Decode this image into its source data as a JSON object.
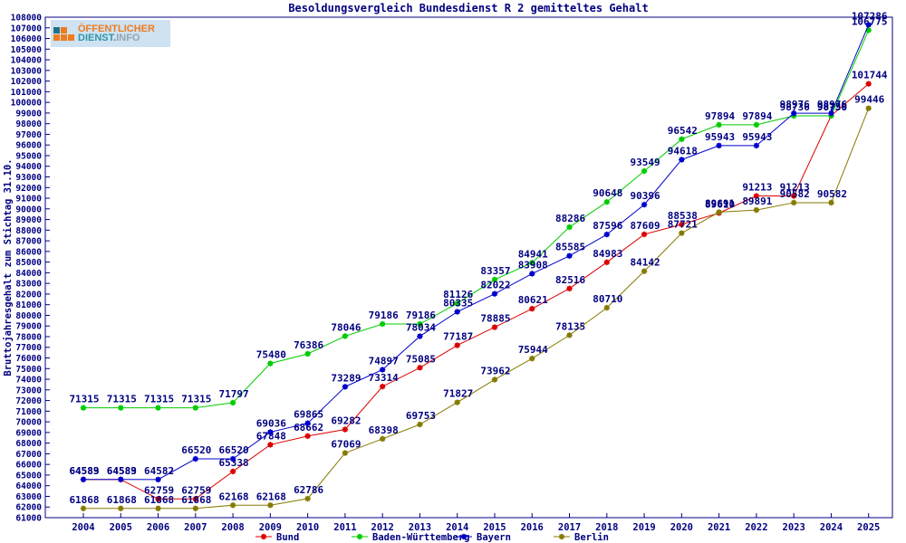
{
  "title": "Besoldungsvergleich Bundesdienst R 2 gemitteltes Gehalt",
  "logo": {
    "line1": "ÖFFENTLICHER",
    "line2_part1": "DIENST.",
    "line2_part2": "INFO"
  },
  "colors": {
    "text_navy": "#000080",
    "frame": "#000080",
    "bund": "#dd0000",
    "baden_wuerttemberg": "#00cc00",
    "bayern": "#0000cc",
    "berlin": "#857a00",
    "logo_orange": "#ee7c1e",
    "logo_teal": "#2f96a8"
  },
  "chart_data": {
    "type": "line",
    "title": "Besoldungsvergleich Bundesdienst R 2 gemitteltes Gehalt",
    "ylabel": "Bruttojahresgehalt zum Stichtag 31.10.",
    "xlabel": "",
    "ylim": [
      61000,
      108000
    ],
    "ytick_step": 1000,
    "grid": false,
    "legend_position": "bottom",
    "categories": [
      2004,
      2005,
      2006,
      2007,
      2008,
      2009,
      2010,
      2011,
      2012,
      2013,
      2014,
      2015,
      2016,
      2017,
      2018,
      2019,
      2020,
      2021,
      2022,
      2023,
      2024,
      2025
    ],
    "series": [
      {
        "name": "Bund",
        "color": "#dd0000",
        "values": [
          64583,
          64583,
          62759,
          62759,
          65338,
          67848,
          68662,
          69282,
          73314,
          75085,
          77187,
          78885,
          80621,
          82516,
          84983,
          87609,
          88538,
          89610,
          91213,
          91213,
          98759,
          101744
        ]
      },
      {
        "name": "Baden-Württemberg",
        "color": "#00cc00",
        "values": [
          71315,
          71315,
          71315,
          71315,
          71797,
          75480,
          76386,
          78046,
          79186,
          79186,
          81126,
          83357,
          84941,
          88286,
          90648,
          93549,
          96542,
          97894,
          97894,
          98736,
          98736,
          106775
        ]
      },
      {
        "name": "Bayern",
        "color": "#0000cc",
        "values": [
          64589,
          64589,
          64582,
          66520,
          66520,
          69036,
          69865,
          73289,
          74897,
          78034,
          80335,
          82022,
          83908,
          85585,
          87596,
          90396,
          94618,
          95943,
          95943,
          98976,
          98976,
          107286
        ]
      },
      {
        "name": "Berlin",
        "color": "#857a00",
        "values": [
          61868,
          61868,
          61868,
          61868,
          62168,
          62168,
          62786,
          67069,
          68398,
          69753,
          71827,
          73962,
          75944,
          78135,
          80710,
          84142,
          87721,
          89691,
          89891,
          90582,
          90582,
          99446
        ]
      }
    ]
  }
}
